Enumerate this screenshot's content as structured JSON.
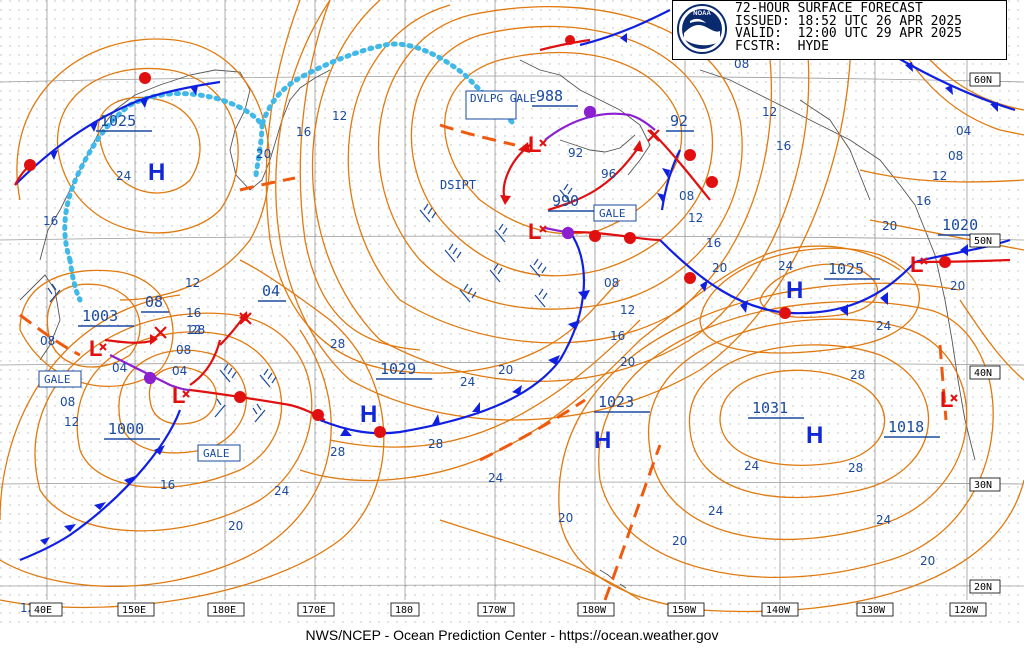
{
  "header": {
    "lines": [
      "72-HOUR SURFACE FORECAST",
      "ISSUED: 18:52 UTC 26 APR 2025",
      "VALID:  12:00 UTC 29 APR 2025",
      "FCSTR:  HYDE"
    ],
    "logo_text": "NOAA"
  },
  "footer": "NWS/NCEP - Ocean Prediction Center - https://ocean.weather.gov",
  "colors": {
    "isobar": "#e07a10",
    "label": "#1a4aa0",
    "cold_front": "#1020e0",
    "warm_front": "#e01010",
    "occluded_front": "#8a20d0",
    "ice": "#40b8e8",
    "trough": "#f05a10",
    "high": "#1028d8",
    "low": "#e01010"
  },
  "lon_labels": [
    "40E",
    "150E",
    "180E",
    "170E",
    "180",
    "170W",
    "180W",
    "150W",
    "140W",
    "130W",
    "120W"
  ],
  "lat_labels": [
    "60N",
    "50N",
    "40N",
    "30N",
    "20N"
  ],
  "centers": [
    {
      "type": "H",
      "pressure": "1025"
    },
    {
      "type": "H",
      "pressure": "1029"
    },
    {
      "type": "H",
      "pressure": "1023"
    },
    {
      "type": "H",
      "pressure": "1031"
    },
    {
      "type": "H",
      "pressure": "1025"
    },
    {
      "type": "H",
      "pressure": "1018"
    },
    {
      "type": "L",
      "pressure": "988"
    },
    {
      "type": "L",
      "pressure": "990"
    },
    {
      "type": "L",
      "pressure": "1003"
    },
    {
      "type": "L",
      "pressure": "1000"
    },
    {
      "type": "L",
      "pressure": "1020"
    }
  ],
  "forecast_values": [
    "08",
    "04",
    "92"
  ],
  "warnings": [
    "DVLPG GALE",
    "GALE",
    "GALE",
    "GALE"
  ],
  "dsipt_label": "DSIPT",
  "isobar_labels": [
    "24",
    "16",
    "12",
    "20",
    "16",
    "08",
    "04",
    "08",
    "12",
    "16",
    "12",
    "08",
    "04",
    "20",
    "24",
    "28",
    "28",
    "28",
    "24",
    "24",
    "28",
    "20",
    "16",
    "12",
    "08",
    "92",
    "96",
    "08",
    "12",
    "16",
    "20",
    "24",
    "28",
    "20",
    "24",
    "20",
    "16",
    "12",
    "08",
    "04",
    "24",
    "28",
    "24",
    "20",
    "24",
    "20",
    "16",
    "12"
  ]
}
